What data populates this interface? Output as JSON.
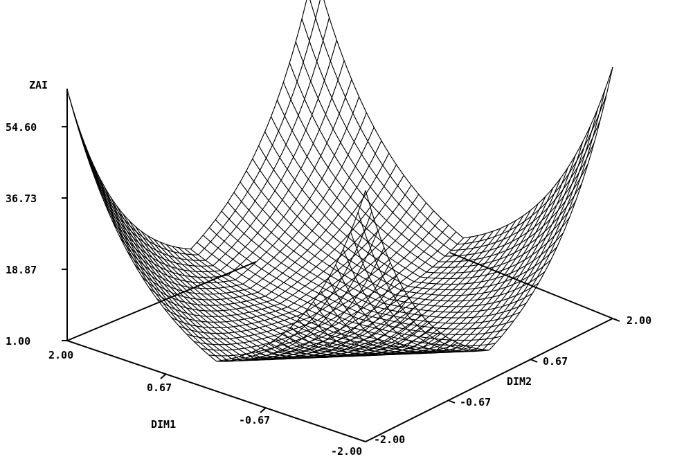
{
  "chart_data": {
    "type": "surface",
    "title": "",
    "z_label": "ZAI",
    "x_label": "DIM1",
    "y_label": "DIM2",
    "z_ticks": [
      "54.60",
      "36.73",
      "18.87",
      "1.00"
    ],
    "x_ticks": [
      "2.00",
      "0.67",
      "-0.67",
      "-2.00"
    ],
    "y_ticks": [
      "-2.00",
      "-0.67",
      "0.67",
      "2.00"
    ],
    "x_range": [
      -2.0,
      2.0
    ],
    "y_range": [
      -2.0,
      2.0
    ],
    "z_range": [
      1.0,
      54.6
    ],
    "surface": "exp(abs(DIM1) + abs(DIM2))",
    "grid_lines": 41,
    "line_color": "#000000",
    "background": "#ffffff"
  }
}
